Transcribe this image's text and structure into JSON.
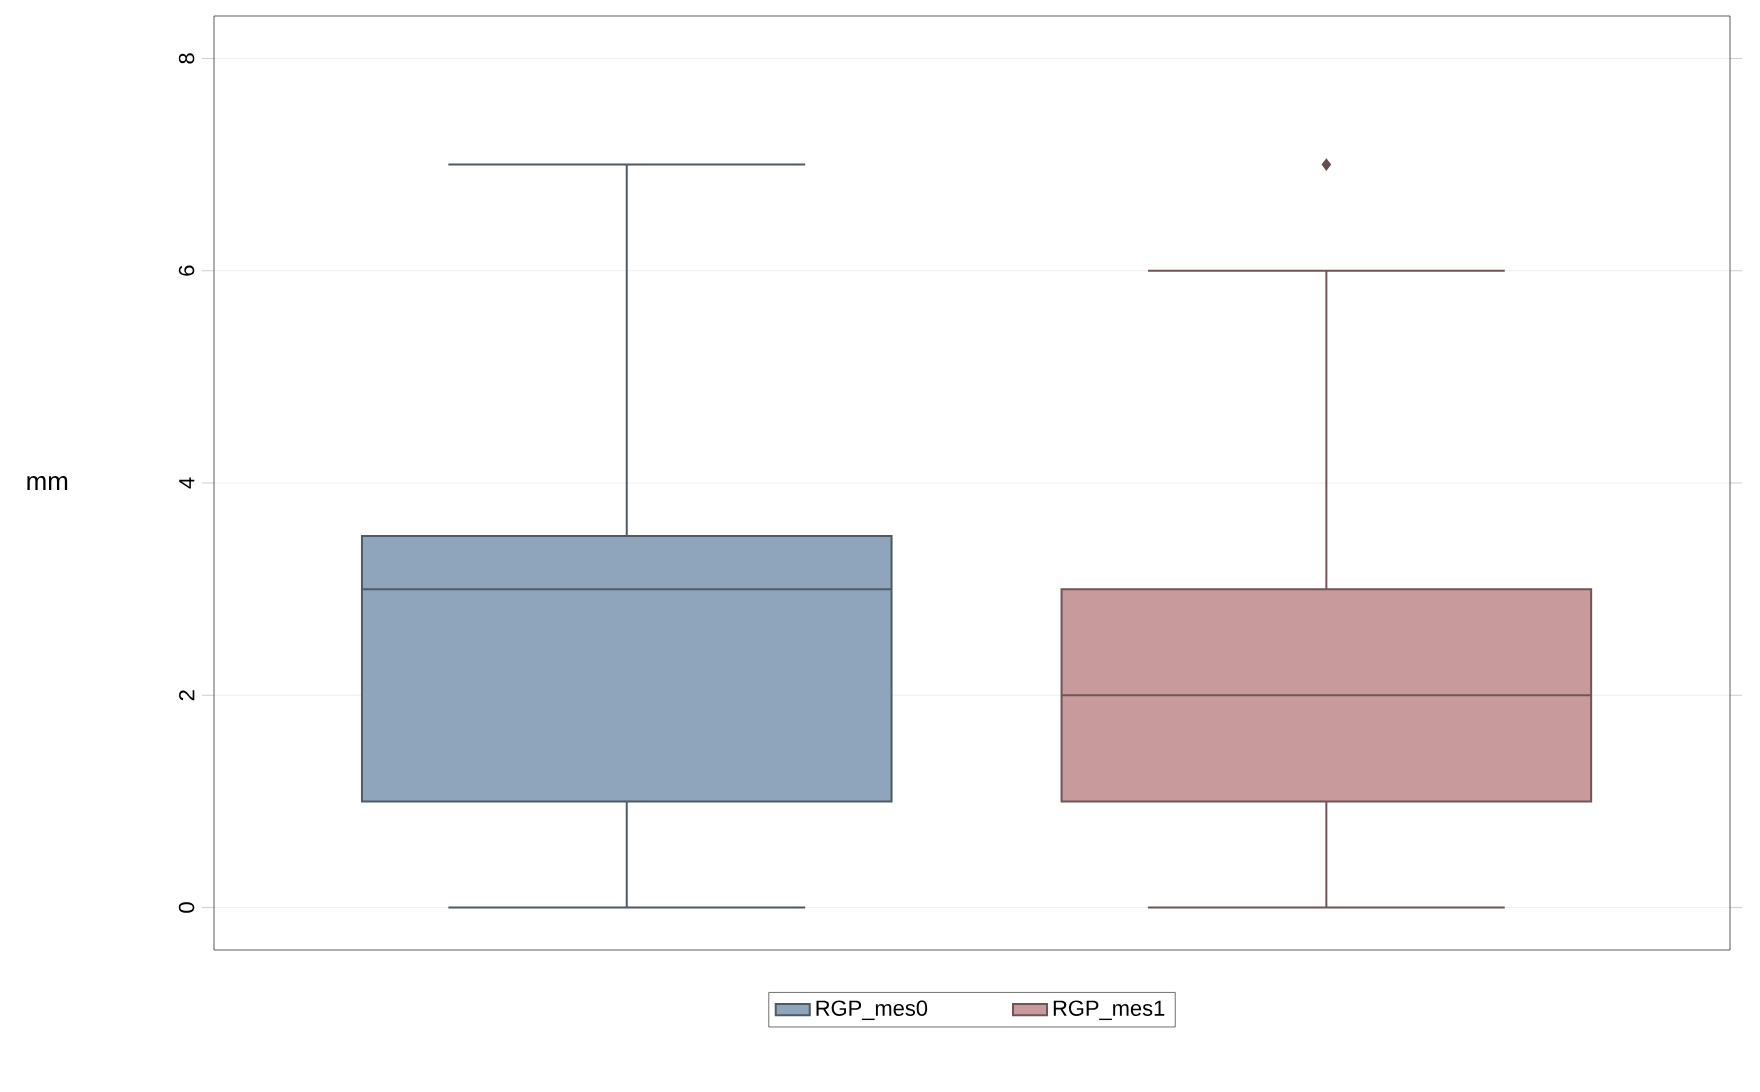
{
  "chart_data": {
    "type": "box",
    "ylabel": "mm",
    "categories": [
      null
    ],
    "series": [
      {
        "name": "RGP_mes0",
        "color": "#8ea5bb",
        "boxes": [
          {
            "low": 0,
            "q1": 1,
            "median": 3,
            "q3": 3.5,
            "high": 7
          }
        ]
      },
      {
        "name": "RGP_mes1",
        "color": "#c99a9c",
        "boxes": [
          {
            "low": 0,
            "q1": 1,
            "median": 2,
            "q3": 3,
            "high": 6,
            "outliers": [
              7
            ]
          }
        ]
      }
    ],
    "ylim": [
      -0.4,
      8.4
    ],
    "yticks": [
      0,
      2,
      4,
      6,
      8
    ],
    "grid": "y",
    "legend": "bottom",
    "tick_labels": "y"
  }
}
